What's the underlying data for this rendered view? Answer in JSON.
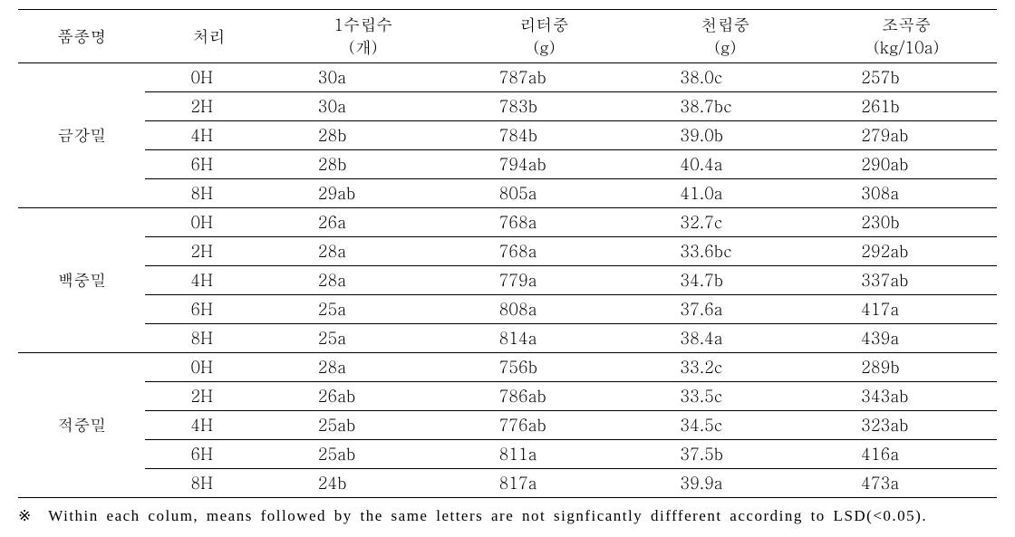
{
  "table": {
    "columns": [
      {
        "label_line1": "품종명",
        "label_line2": ""
      },
      {
        "label_line1": "처리",
        "label_line2": ""
      },
      {
        "label_line1": "1수립수",
        "label_line2": "(개)"
      },
      {
        "label_line1": "리터중",
        "label_line2": "(g)"
      },
      {
        "label_line1": "천립중",
        "label_line2": "(g)"
      },
      {
        "label_line1": "조곡중",
        "label_line2": "(kg/10a)"
      }
    ],
    "groups": [
      {
        "variety": "금강밀",
        "rows": [
          {
            "treatment": "0H",
            "c1": "30a",
            "c2": "787ab",
            "c3": "38.0c",
            "c4": "257b"
          },
          {
            "treatment": "2H",
            "c1": "30a",
            "c2": "783b",
            "c3": "38.7bc",
            "c4": "261b"
          },
          {
            "treatment": "4H",
            "c1": "28b",
            "c2": "784b",
            "c3": "39.0b",
            "c4": "279ab"
          },
          {
            "treatment": "6H",
            "c1": "28b",
            "c2": "794ab",
            "c3": "40.4a",
            "c4": "290ab"
          },
          {
            "treatment": "8H",
            "c1": "29ab",
            "c2": "805a",
            "c3": "41.0a",
            "c4": "308a"
          }
        ]
      },
      {
        "variety": "백중밀",
        "rows": [
          {
            "treatment": "0H",
            "c1": "26a",
            "c2": "768a",
            "c3": "32.7c",
            "c4": "230b"
          },
          {
            "treatment": "2H",
            "c1": "28a",
            "c2": "768a",
            "c3": "33.6bc",
            "c4": "292ab"
          },
          {
            "treatment": "4H",
            "c1": "28a",
            "c2": "779a",
            "c3": "34.7b",
            "c4": "337ab"
          },
          {
            "treatment": "6H",
            "c1": "25a",
            "c2": "808a",
            "c3": "37.6a",
            "c4": "417a"
          },
          {
            "treatment": "8H",
            "c1": "25a",
            "c2": "814a",
            "c3": "38.4a",
            "c4": "439a"
          }
        ]
      },
      {
        "variety": "적중밀",
        "rows": [
          {
            "treatment": "0H",
            "c1": "28a",
            "c2": "756b",
            "c3": "33.2c",
            "c4": "289b"
          },
          {
            "treatment": "2H",
            "c1": "26ab",
            "c2": "786ab",
            "c3": "33.5c",
            "c4": "343ab"
          },
          {
            "treatment": "4H",
            "c1": "25ab",
            "c2": "776ab",
            "c3": "34.5c",
            "c4": "323ab"
          },
          {
            "treatment": "6H",
            "c1": "25ab",
            "c2": "811a",
            "c3": "37.5b",
            "c4": "416a"
          },
          {
            "treatment": "8H",
            "c1": "24b",
            "c2": "817a",
            "c3": "39.9a",
            "c4": "473a"
          }
        ]
      }
    ]
  },
  "footnote": {
    "marker": "※",
    "text": "Within each colum, means followed by the same letters are not signficantly diffferent according to LSD(<0.05)."
  },
  "style": {
    "font_size_body": 18,
    "font_size_footnote": 17,
    "color_text": "#000000",
    "color_bg": "#ffffff",
    "border_thick": 1.5,
    "border_thin": 1
  }
}
